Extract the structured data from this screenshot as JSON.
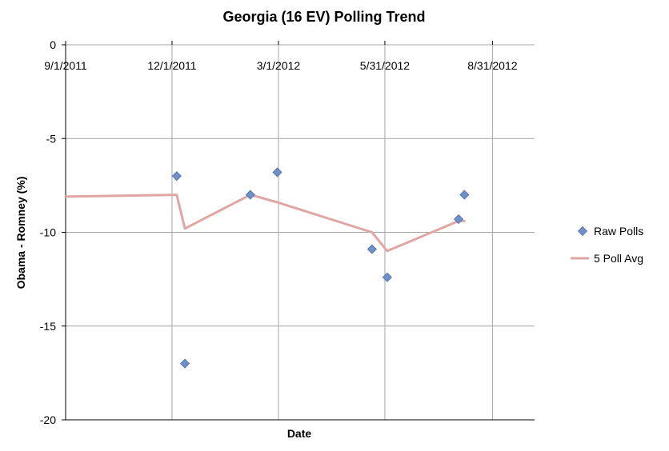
{
  "chart_data": {
    "type": "scatter",
    "title": "Georgia (16 EV) Polling Trend",
    "xlabel": "Date",
    "ylabel": "Obama - Romney (%)",
    "x_range": [
      "2011-09-01",
      "2012-10-06"
    ],
    "x_ticks": [
      {
        "date": "2011-09-01",
        "label": "9/1/2011"
      },
      {
        "date": "2011-12-01",
        "label": "12/1/2011"
      },
      {
        "date": "2012-03-01",
        "label": "3/1/2012"
      },
      {
        "date": "2012-05-31",
        "label": "5/31/2012"
      },
      {
        "date": "2012-08-31",
        "label": "8/31/2012"
      }
    ],
    "ylim": [
      -20,
      0
    ],
    "y_ticks": [
      0,
      -5,
      -10,
      -15,
      -20
    ],
    "grid": true,
    "legend_position": "right",
    "series": [
      {
        "name": "Raw Polls",
        "kind": "scatter",
        "color": "#6f8fc8",
        "points": [
          {
            "x": "2011-12-05",
            "y": -7.0
          },
          {
            "x": "2011-12-12",
            "y": -17.0
          },
          {
            "x": "2012-02-06",
            "y": -8.0
          },
          {
            "x": "2012-02-29",
            "y": -6.8
          },
          {
            "x": "2012-05-20",
            "y": -10.9
          },
          {
            "x": "2012-06-02",
            "y": -12.4
          },
          {
            "x": "2012-08-02",
            "y": -9.3
          },
          {
            "x": "2012-08-07",
            "y": -8.0
          }
        ]
      },
      {
        "name": "5 Poll Avg",
        "kind": "line",
        "color": "#e0a6a3",
        "points": [
          {
            "x": "2011-09-01",
            "y": -8.1
          },
          {
            "x": "2011-12-05",
            "y": -8.0
          },
          {
            "x": "2011-12-12",
            "y": -9.8
          },
          {
            "x": "2012-02-06",
            "y": -8.0
          },
          {
            "x": "2012-02-29",
            "y": -8.4
          },
          {
            "x": "2012-05-20",
            "y": -10.0
          },
          {
            "x": "2012-06-02",
            "y": -11.0
          },
          {
            "x": "2012-08-02",
            "y": -9.4
          },
          {
            "x": "2012-08-07",
            "y": -9.4
          }
        ]
      }
    ]
  }
}
